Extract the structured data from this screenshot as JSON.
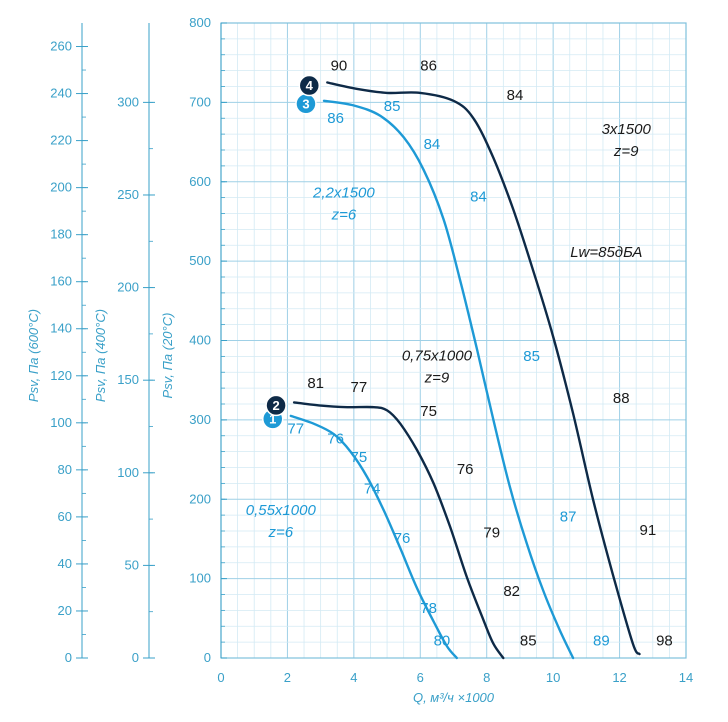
{
  "chart_data": {
    "type": "line",
    "xlabel": "Q, м³/ч ×1000",
    "x_ticks": [
      "0",
      "2",
      "4",
      "6",
      "8",
      "10",
      "12",
      "14"
    ],
    "xlim": [
      0,
      14
    ],
    "ylim": [
      0,
      800
    ],
    "grid": true,
    "y_axes": [
      {
        "label": "Psv, Па (600°C)",
        "ticks": [
          "0",
          "20",
          "40",
          "60",
          "80",
          "100",
          "120",
          "140",
          "160",
          "180",
          "200",
          "220",
          "240",
          "260"
        ],
        "max": 260
      },
      {
        "label": "Psv, Па (400°C)",
        "ticks": [
          "0",
          "50",
          "100",
          "150",
          "200",
          "250",
          "300"
        ],
        "max": 300
      },
      {
        "label": "Psv, Па (20°C)",
        "ticks": [
          "0",
          "100",
          "200",
          "300",
          "400",
          "500",
          "600",
          "700",
          "800"
        ],
        "max": 800
      }
    ],
    "series": [
      {
        "badge": "1",
        "color": "#1e9ad6",
        "points": [
          [
            2.1,
            305
          ],
          [
            2.8,
            295
          ],
          [
            3.4,
            282
          ],
          [
            3.9,
            260
          ],
          [
            4.4,
            228
          ],
          [
            4.9,
            186
          ],
          [
            5.4,
            138
          ],
          [
            5.9,
            88
          ],
          [
            6.4,
            46
          ],
          [
            6.8,
            15
          ],
          [
            7.1,
            0
          ]
        ],
        "point_labels": [
          {
            "x": 2.0,
            "y": 283,
            "text": "77"
          },
          {
            "x": 3.2,
            "y": 270,
            "text": "76"
          },
          {
            "x": 3.9,
            "y": 247,
            "text": "75"
          },
          {
            "x": 4.3,
            "y": 207,
            "text": "74"
          },
          {
            "x": 5.2,
            "y": 145,
            "text": "76"
          },
          {
            "x": 6.0,
            "y": 57,
            "text": "78"
          },
          {
            "x": 6.4,
            "y": 16,
            "text": "80"
          }
        ]
      },
      {
        "badge": "2",
        "color": "#0e2a47",
        "points": [
          [
            2.2,
            322
          ],
          [
            3.0,
            318
          ],
          [
            3.8,
            316
          ],
          [
            4.6,
            316
          ],
          [
            5.0,
            312
          ],
          [
            5.4,
            295
          ],
          [
            5.9,
            262
          ],
          [
            6.4,
            220
          ],
          [
            6.9,
            165
          ],
          [
            7.4,
            102
          ],
          [
            7.9,
            48
          ],
          [
            8.2,
            18
          ],
          [
            8.5,
            0
          ]
        ],
        "point_labels": [
          {
            "x": 2.6,
            "y": 340,
            "text": "81"
          },
          {
            "x": 3.9,
            "y": 335,
            "text": "77"
          },
          {
            "x": 6.0,
            "y": 305,
            "text": "75"
          },
          {
            "x": 7.1,
            "y": 232,
            "text": "76"
          },
          {
            "x": 7.9,
            "y": 152,
            "text": "79"
          },
          {
            "x": 8.5,
            "y": 78,
            "text": "82"
          },
          {
            "x": 9.0,
            "y": 16,
            "text": "85"
          }
        ]
      },
      {
        "badge": "3",
        "color": "#1e9ad6",
        "points": [
          [
            3.1,
            702
          ],
          [
            4.0,
            696
          ],
          [
            4.8,
            683
          ],
          [
            5.5,
            656
          ],
          [
            6.1,
            615
          ],
          [
            6.7,
            553
          ],
          [
            7.2,
            476
          ],
          [
            7.7,
            390
          ],
          [
            8.2,
            300
          ],
          [
            8.7,
            215
          ],
          [
            9.2,
            145
          ],
          [
            9.7,
            85
          ],
          [
            10.2,
            35
          ],
          [
            10.6,
            0
          ]
        ],
        "point_labels": [
          {
            "x": 3.2,
            "y": 674,
            "text": "86"
          },
          {
            "x": 4.9,
            "y": 689,
            "text": "85"
          },
          {
            "x": 6.1,
            "y": 641,
            "text": "84"
          },
          {
            "x": 7.5,
            "y": 575,
            "text": "84"
          },
          {
            "x": 9.1,
            "y": 374,
            "text": "85"
          },
          {
            "x": 10.2,
            "y": 172,
            "text": "87"
          },
          {
            "x": 11.2,
            "y": 16,
            "text": "89"
          }
        ]
      },
      {
        "badge": "4",
        "color": "#0e2a47",
        "points": [
          [
            3.2,
            725
          ],
          [
            4.1,
            717
          ],
          [
            5.0,
            712
          ],
          [
            6.0,
            712
          ],
          [
            7.0,
            702
          ],
          [
            7.6,
            680
          ],
          [
            8.2,
            630
          ],
          [
            8.8,
            565
          ],
          [
            9.4,
            488
          ],
          [
            10.0,
            405
          ],
          [
            10.6,
            308
          ],
          [
            11.2,
            200
          ],
          [
            11.8,
            105
          ],
          [
            12.4,
            18
          ],
          [
            12.6,
            5
          ]
        ],
        "point_labels": [
          {
            "x": 3.3,
            "y": 740,
            "text": "90"
          },
          {
            "x": 6.0,
            "y": 740,
            "text": "86"
          },
          {
            "x": 8.6,
            "y": 703,
            "text": "84"
          },
          {
            "x": 11.8,
            "y": 321,
            "text": "88"
          },
          {
            "x": 12.6,
            "y": 155,
            "text": "91"
          },
          {
            "x": 13.1,
            "y": 16,
            "text": "98"
          }
        ]
      }
    ],
    "annotations": [
      {
        "lines": [
          "0,55x1000",
          "z=6"
        ],
        "color": "blue",
        "anchor": [
          1.8,
          180
        ]
      },
      {
        "lines": [
          "0,75x1000",
          "z=9"
        ],
        "color": "dark",
        "anchor": [
          6.5,
          375
        ]
      },
      {
        "lines": [
          "2,2x1500",
          "z=6"
        ],
        "color": "blue",
        "anchor": [
          3.7,
          580
        ]
      },
      {
        "lines": [
          "3x1500",
          "z=9"
        ],
        "color": "dark",
        "anchor": [
          12.2,
          660
        ]
      },
      {
        "lines": [
          "Lw=85дБА"
        ],
        "color": "dark",
        "anchor": [
          11.6,
          505
        ]
      }
    ]
  }
}
